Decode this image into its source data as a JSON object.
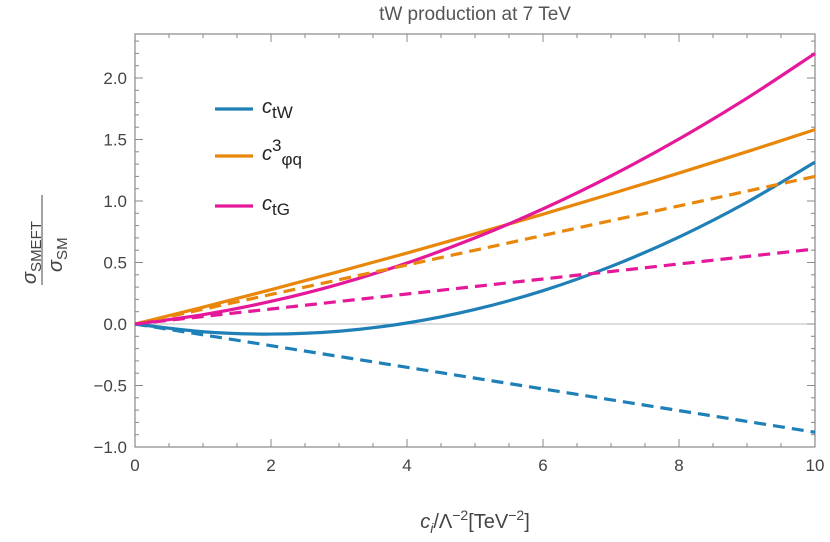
{
  "chart_data": {
    "type": "line",
    "title": "tW production at 7 TeV",
    "xlabel": {
      "base": "c",
      "sub": "i",
      "mid": "/Λ",
      "sup": "−2",
      "unit": "[TeV",
      "unit_sup": "−2",
      "close": "]"
    },
    "ylabel": {
      "num": "σ",
      "num_sub": "SMEFT",
      "den": "σ",
      "den_sub": "SM"
    },
    "xlim": [
      0,
      10
    ],
    "ylim": [
      -1.05,
      2.35
    ],
    "x_ticks": [
      0,
      2,
      4,
      6,
      8,
      10
    ],
    "x_tick_labels": [
      "0",
      "2",
      "4",
      "6",
      "8",
      "10"
    ],
    "y_ticks": [
      -1.0,
      -0.5,
      0.0,
      0.5,
      1.0,
      1.5,
      2.0
    ],
    "y_tick_labels": [
      "−1.0",
      "−0.5",
      "0.0",
      "0.5",
      "1.0",
      "1.5",
      "2.0"
    ],
    "grid": false,
    "zero_line": true,
    "legend_placement": "top-left",
    "x": [
      0,
      1,
      2,
      3,
      4,
      5,
      6,
      7,
      8,
      9,
      10
    ],
    "series": [
      {
        "name": "ctW",
        "label": {
          "base": "c",
          "sub": "tW"
        },
        "color": "#1f80b8",
        "style": "solid",
        "values": [
          0,
          -0.063,
          -0.082,
          -0.059,
          0.008,
          0.118,
          0.271,
          0.468,
          0.707,
          0.99,
          1.316
        ]
      },
      {
        "name": "c3φq",
        "label": {
          "base": "c",
          "sup": "3",
          "sub": "φq"
        },
        "color": "#e8870a",
        "style": "solid",
        "values": [
          0,
          0.137,
          0.279,
          0.426,
          0.577,
          0.733,
          0.893,
          1.058,
          1.227,
          1.401,
          1.58
        ]
      },
      {
        "name": "ctG",
        "label": {
          "base": "c",
          "sub": "tG"
        },
        "color": "#e5189a",
        "style": "solid",
        "values": [
          0,
          0.076,
          0.184,
          0.324,
          0.496,
          0.7,
          0.936,
          1.204,
          1.504,
          1.836,
          2.2
        ]
      },
      {
        "color": "#1f80b8",
        "style": "dashed",
        "values": [
          0,
          -0.088,
          -0.176,
          -0.264,
          -0.352,
          -0.44,
          -0.528,
          -0.616,
          -0.704,
          -0.792,
          -0.88
        ]
      },
      {
        "color": "#e8870a",
        "style": "dashed",
        "values": [
          0,
          0.12,
          0.24,
          0.36,
          0.48,
          0.6,
          0.72,
          0.84,
          0.96,
          1.08,
          1.2
        ]
      },
      {
        "color": "#e5189a",
        "style": "dashed",
        "values": [
          0,
          0.061,
          0.122,
          0.183,
          0.244,
          0.305,
          0.366,
          0.427,
          0.488,
          0.549,
          0.61
        ]
      }
    ]
  }
}
